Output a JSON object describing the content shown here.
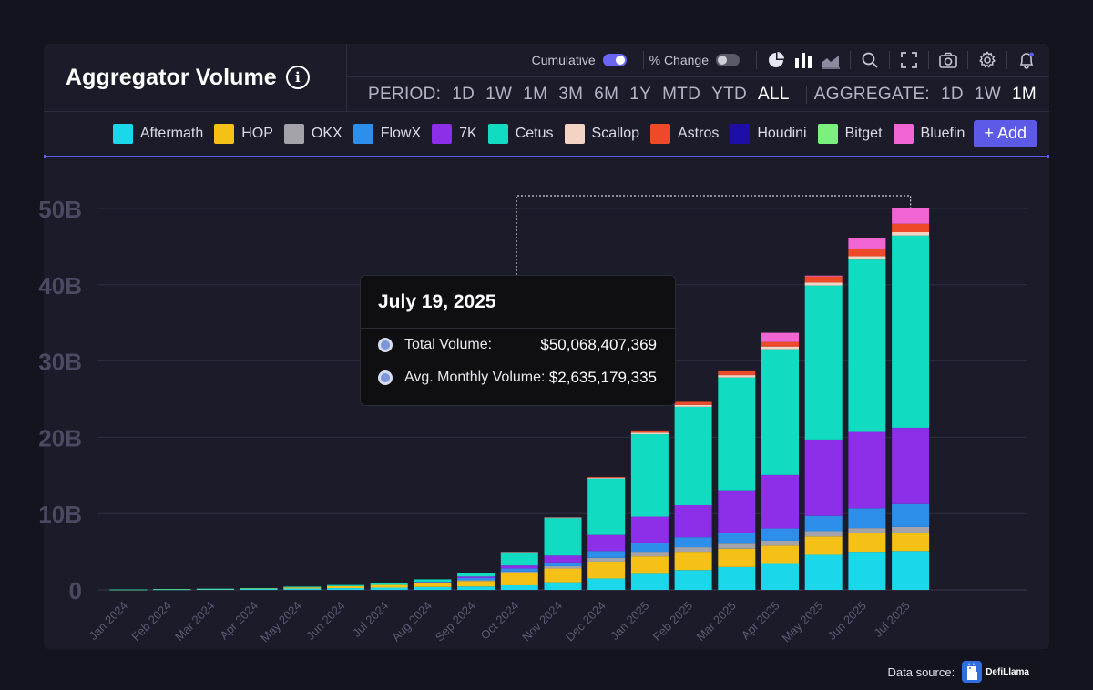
{
  "header": {
    "title": "Aggregator Volume"
  },
  "toolbar": {
    "cumulative_label": "Cumulative",
    "change_label": "% Change"
  },
  "period": {
    "label": "PERIOD:",
    "options": [
      "1D",
      "1W",
      "1M",
      "3M",
      "6M",
      "1Y",
      "MTD",
      "YTD",
      "ALL"
    ],
    "active": "ALL"
  },
  "aggregate": {
    "label": "AGGREGATE:",
    "options": [
      "1D",
      "1W",
      "1M"
    ],
    "active": "1M"
  },
  "legend": [
    {
      "name": "Aftermath",
      "color": "#1ad8ea"
    },
    {
      "name": "HOP",
      "color": "#f5c116"
    },
    {
      "name": "OKX",
      "color": "#a3a3a9"
    },
    {
      "name": "FlowX",
      "color": "#2d8fea"
    },
    {
      "name": "7K",
      "color": "#8d2ee8"
    },
    {
      "name": "Cetus",
      "color": "#11dbc0"
    },
    {
      "name": "Scallop",
      "color": "#f3d3c3"
    },
    {
      "name": "Astros",
      "color": "#ee4a2a"
    },
    {
      "name": "Houdini",
      "color": "#1c0ea6"
    },
    {
      "name": "Bitget",
      "color": "#7cf07e"
    },
    {
      "name": "Bluefin",
      "color": "#f065d2"
    }
  ],
  "add_button": "+ Add",
  "accent_color": "#5d5ce6",
  "tooltip": {
    "date": "July 19, 2025",
    "rows": [
      {
        "label": "Total Volume:",
        "value": "$50,068,407,369"
      },
      {
        "label": "Avg. Monthly Volume:",
        "value": "$2,635,179,335"
      }
    ]
  },
  "footer": {
    "source_label": "Data source:",
    "brand": "DefiLlama"
  },
  "chart_data": {
    "type": "bar",
    "stacked": true,
    "cumulative": true,
    "categories": [
      "Jan 2024",
      "Feb 2024",
      "Mar 2024",
      "Apr 2024",
      "May 2024",
      "Jun 2024",
      "Jul 2024",
      "Aug 2024",
      "Sep 2024",
      "Oct 2024",
      "Nov 2024",
      "Dec 2024",
      "Jan 2025",
      "Feb 2025",
      "Mar 2025",
      "Apr 2025",
      "May 2025",
      "Jun 2025",
      "Jul 2025"
    ],
    "yticks": [
      "0",
      "10B",
      "20B",
      "30B",
      "40B",
      "50B"
    ],
    "ylim": [
      0,
      50
    ],
    "unit": "B",
    "grid": true,
    "series": [
      {
        "name": "Aftermath",
        "values": [
          0.02,
          0.05,
          0.08,
          0.12,
          0.18,
          0.24,
          0.3,
          0.38,
          0.45,
          0.6,
          1.0,
          1.5,
          2.1,
          2.6,
          3.0,
          3.4,
          4.6,
          5.0,
          5.1
        ]
      },
      {
        "name": "HOP",
        "values": [
          0.02,
          0.04,
          0.05,
          0.06,
          0.15,
          0.25,
          0.35,
          0.5,
          0.7,
          1.6,
          1.8,
          2.2,
          2.3,
          2.4,
          2.4,
          2.4,
          2.4,
          2.4,
          2.4
        ]
      },
      {
        "name": "OKX",
        "values": [
          0,
          0,
          0,
          0,
          0,
          0,
          0,
          0.05,
          0.1,
          0.2,
          0.3,
          0.5,
          0.6,
          0.6,
          0.65,
          0.65,
          0.7,
          0.7,
          0.75
        ]
      },
      {
        "name": "FlowX",
        "values": [
          0,
          0,
          0,
          0,
          0,
          0,
          0,
          0.05,
          0.3,
          0.4,
          0.5,
          0.9,
          1.2,
          1.3,
          1.4,
          1.6,
          2.0,
          2.6,
          3.0
        ]
      },
      {
        "name": "7K",
        "values": [
          0,
          0,
          0,
          0,
          0,
          0,
          0,
          0.05,
          0.2,
          0.4,
          0.9,
          2.1,
          3.4,
          4.2,
          5.6,
          7.0,
          10.0,
          10.0,
          10.0
        ]
      },
      {
        "name": "Cetus",
        "values": [
          0.01,
          0.02,
          0.03,
          0.05,
          0.1,
          0.15,
          0.25,
          0.35,
          0.45,
          1.7,
          4.9,
          7.4,
          10.8,
          12.9,
          14.8,
          16.5,
          20.2,
          22.6,
          25.2
        ]
      },
      {
        "name": "Scallop",
        "values": [
          0,
          0,
          0,
          0,
          0,
          0,
          0,
          0,
          0.02,
          0.05,
          0.08,
          0.1,
          0.2,
          0.25,
          0.3,
          0.35,
          0.4,
          0.45,
          0.45
        ]
      },
      {
        "name": "Astros",
        "values": [
          0,
          0,
          0,
          0,
          0,
          0,
          0,
          0,
          0,
          0,
          0,
          0.1,
          0.3,
          0.4,
          0.5,
          0.6,
          0.8,
          1.0,
          1.1
        ]
      },
      {
        "name": "Houdini",
        "values": [
          0,
          0,
          0,
          0,
          0,
          0,
          0,
          0,
          0,
          0,
          0,
          0,
          0,
          0,
          0,
          0,
          0,
          0,
          0
        ]
      },
      {
        "name": "Bitget",
        "values": [
          0,
          0,
          0,
          0,
          0,
          0,
          0,
          0,
          0,
          0,
          0,
          0,
          0,
          0,
          0,
          0,
          0,
          0,
          0
        ]
      },
      {
        "name": "Bluefin",
        "values": [
          0,
          0,
          0,
          0,
          0,
          0,
          0,
          0,
          0,
          0,
          0,
          0,
          0,
          0,
          0,
          1.2,
          0.1,
          1.4,
          2.1
        ]
      }
    ]
  }
}
